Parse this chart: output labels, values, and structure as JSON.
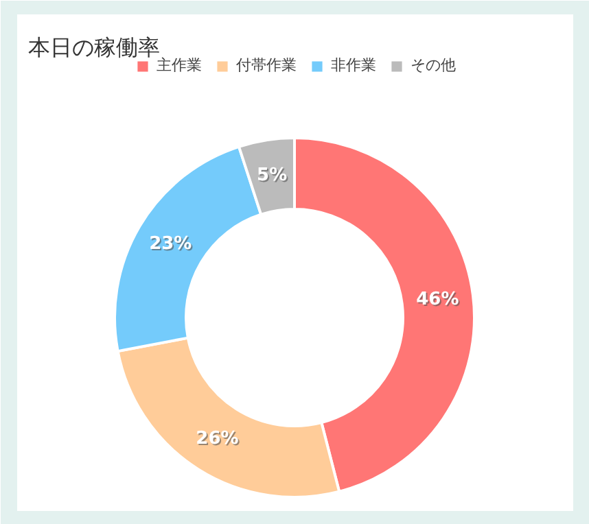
{
  "chart_data": {
    "type": "donut",
    "title": "本日の稼働率",
    "categories": [
      "主作業",
      "付帯作業",
      "非作業",
      "その他"
    ],
    "values": [
      46,
      26,
      23,
      5
    ],
    "colors": [
      "#ff7675",
      "#ffcc99",
      "#74cbfb",
      "#bbbbbb"
    ],
    "value_labels": [
      "46%",
      "26%",
      "23%",
      "5%"
    ],
    "legend": "top"
  }
}
